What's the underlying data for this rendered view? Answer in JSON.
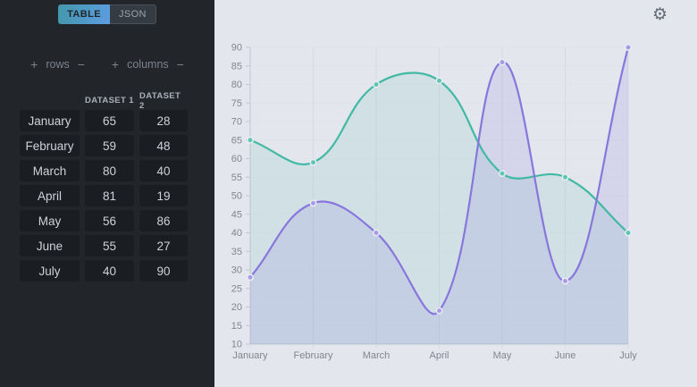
{
  "sidebar": {
    "tabs": [
      {
        "label": "TABLE",
        "active": true
      },
      {
        "label": "JSON",
        "active": false
      }
    ],
    "controls": {
      "rows": {
        "plus": "+",
        "label": "rows",
        "minus": "−"
      },
      "columns": {
        "plus": "+",
        "label": "columns",
        "minus": "−"
      }
    },
    "table": {
      "columns": [
        "DATASET 1",
        "DATASET 2"
      ],
      "rows": [
        {
          "label": "January",
          "values": [
            65,
            28
          ]
        },
        {
          "label": "February",
          "values": [
            59,
            48
          ]
        },
        {
          "label": "March",
          "values": [
            80,
            40
          ]
        },
        {
          "label": "April",
          "values": [
            81,
            19
          ]
        },
        {
          "label": "May",
          "values": [
            56,
            86
          ]
        },
        {
          "label": "June",
          "values": [
            55,
            27
          ]
        },
        {
          "label": "July",
          "values": [
            40,
            90
          ]
        }
      ]
    },
    "colors": {
      "active_tab_gradient": [
        "#4397ab",
        "#5c9de0"
      ],
      "panel_bg": "#22262b",
      "cell_bg": "#1a1e23"
    }
  },
  "chart_panel": {
    "settings_icon": "gear"
  },
  "chart_data": {
    "type": "line",
    "x": [
      "January",
      "February",
      "March",
      "April",
      "May",
      "June",
      "July"
    ],
    "series": [
      {
        "name": "DATASET 1",
        "values": [
          65,
          59,
          80,
          81,
          56,
          55,
          40
        ],
        "color": "#41b9a5",
        "fill": "rgba(65,185,165,0.11)",
        "point_fill": "#5ec6b1"
      },
      {
        "name": "DATASET 2",
        "values": [
          28,
          48,
          40,
          19,
          86,
          27,
          90
        ],
        "color": "#8876dd",
        "fill": "rgba(136,118,221,0.16)",
        "point_fill": "#a89ae6"
      }
    ],
    "ylim": [
      10,
      90
    ],
    "ytick_step": 5,
    "grid": true,
    "legend": "none",
    "curve_tension": 0.4,
    "axis_colors": {
      "grid_h": "#dfe3ea",
      "grid_v": "#d5dae2",
      "axis": "#c2c8d2",
      "label": "#80868f",
      "bg": "#e3e6ec"
    }
  }
}
